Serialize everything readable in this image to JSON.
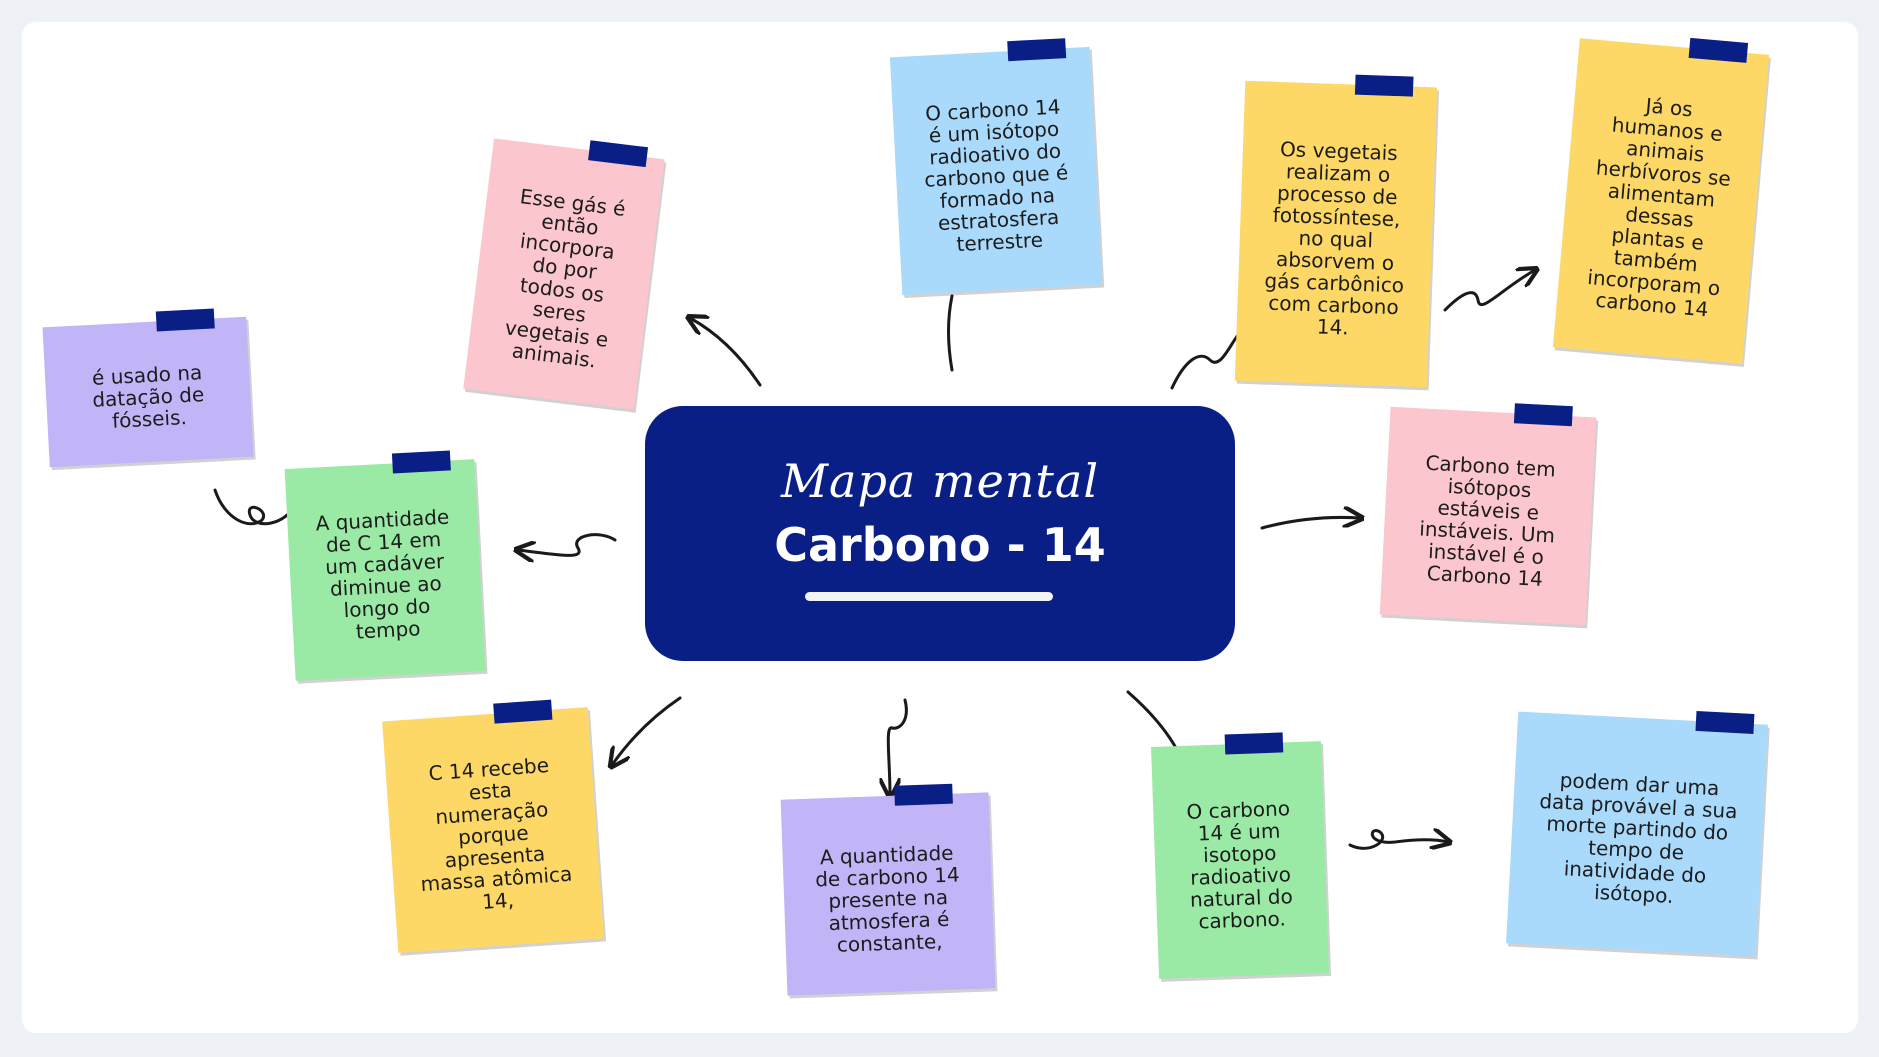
{
  "colors": {
    "center": "#0a1f86",
    "tape": "#0a1f86",
    "yellow": "#fdd867",
    "pink": "#fbc6cd",
    "blue": "#a9d9fb",
    "purple": "#c1b5f7",
    "green": "#9aeaa6"
  },
  "center": {
    "subtitle": "Mapa mental",
    "title": "Carbono - 14"
  },
  "notes": [
    {
      "id": "isotopo-radioativo",
      "color": "blue",
      "text": "O carbono 14 é um isótopo radioativo do carbono que é formado na estratosfera terrestre"
    },
    {
      "id": "gas-incorporado",
      "color": "pink",
      "text": "Esse gás é então incorpora do por todos os seres vegetais e animais."
    },
    {
      "id": "datacao-fosseis",
      "color": "purple",
      "text": "é usado na datação de fósseis."
    },
    {
      "id": "quantidade-cadaver",
      "color": "green",
      "text": "A quantidade de C 14 em um cadáver diminue ao longo do tempo"
    },
    {
      "id": "numeracao",
      "color": "yellow",
      "text": "C 14 recebe esta numeração porque apresenta massa atômica 14,"
    },
    {
      "id": "atmosfera-constante",
      "color": "purple",
      "text": "A quantidade de carbono 14 presente na atmosfera é constante,"
    },
    {
      "id": "radioativo-natural",
      "color": "green",
      "text": "O carbono 14 é um isotopo radioativo natural do carbono."
    },
    {
      "id": "data-provavel",
      "color": "blue",
      "text": "podem dar uma data provável a sua morte partindo do tempo de inatividade do isótopo."
    },
    {
      "id": "isotopos-estaveis",
      "color": "pink",
      "text": "Carbono tem isótopos estáveis e instáveis. Um instável é o Carbono 14"
    },
    {
      "id": "fotossintese",
      "color": "yellow",
      "text": "Os vegetais realizam o processo de fotossíntese, no qual absorvem o gás carbônico com carbono 14."
    },
    {
      "id": "humanos-animais",
      "color": "yellow",
      "text": "Já os humanos e animais herbívoros se alimentam dessas plantas e também incorporam o carbono 14"
    }
  ]
}
